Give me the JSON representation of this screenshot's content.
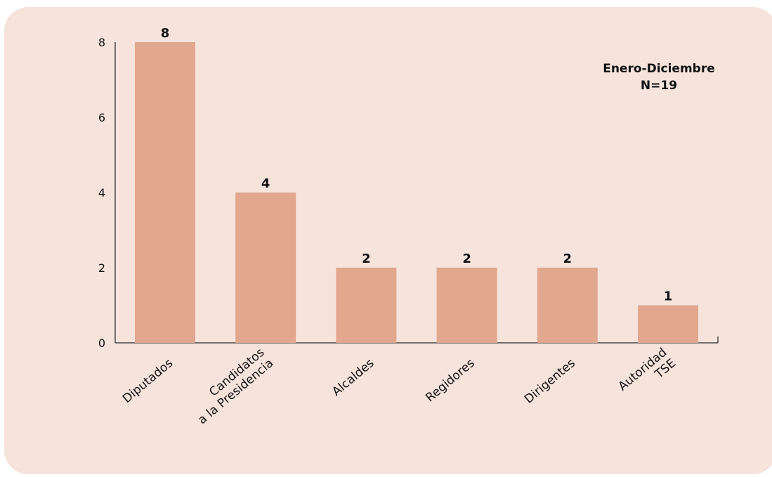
{
  "chart_data": {
    "type": "bar",
    "categories": [
      [
        "Diputados"
      ],
      [
        "Candidatos",
        "a la Presidencia"
      ],
      [
        "Alcaldes"
      ],
      [
        "Regidores"
      ],
      [
        "Dirigentes"
      ],
      [
        "Autoridad",
        "TSE"
      ]
    ],
    "values": [
      8,
      4,
      2,
      2,
      2,
      1
    ],
    "data_labels": [
      "8",
      "4",
      "2",
      "2",
      "2",
      "1"
    ],
    "yticks": [
      0,
      2,
      4,
      6,
      8
    ],
    "ylim": [
      0,
      8
    ],
    "annotation": [
      "Enero-Diciembre",
      "N=19"
    ],
    "bar_color": "#e2a78f",
    "background_color": "#f5e3dc",
    "grid": false
  }
}
